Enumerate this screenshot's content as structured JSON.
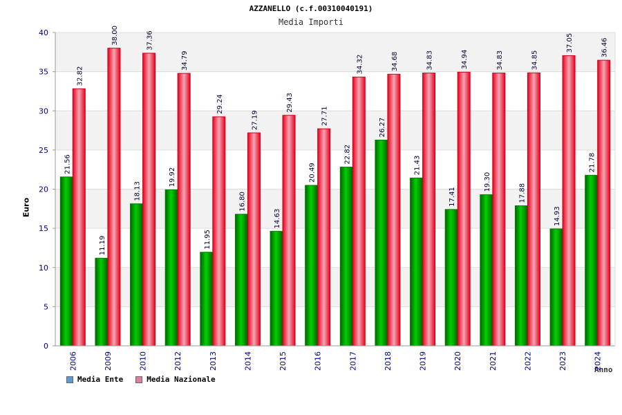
{
  "chart_data": {
    "type": "bar",
    "title": "AZZANELLO (c.f.00310040191)",
    "subtitle": "Media Importi",
    "xlabel": "Anno",
    "ylabel": "Euro",
    "ylim": [
      0,
      40
    ],
    "yticks": [
      "0",
      "5",
      "10",
      "15",
      "20",
      "25",
      "30",
      "35",
      "40"
    ],
    "categories": [
      "2006",
      "2009",
      "2010",
      "2012",
      "2013",
      "2014",
      "2015",
      "2016",
      "2017",
      "2018",
      "2019",
      "2020",
      "2021",
      "2022",
      "2023",
      "2024"
    ],
    "series": [
      {
        "name": "Media Ente",
        "color": "#00a000",
        "legend_color": "#5b9bd5",
        "values": [
          21.56,
          11.19,
          18.13,
          19.92,
          11.95,
          16.8,
          14.63,
          20.49,
          22.82,
          26.27,
          21.43,
          17.41,
          19.3,
          17.88,
          14.93,
          21.78
        ],
        "labels": [
          "21.56",
          "11.19",
          "18.13",
          "19.92",
          "11.95",
          "16.80",
          "14.63",
          "20.49",
          "22.82",
          "26.27",
          "21.43",
          "17.41",
          "19.30",
          "17.88",
          "14.93",
          "21.78"
        ]
      },
      {
        "name": "Media Nazionale",
        "color": "#e8001c",
        "legend_color": "#e07c9c",
        "values": [
          32.82,
          38.0,
          37.36,
          34.79,
          29.24,
          27.19,
          29.43,
          27.71,
          34.32,
          34.68,
          34.83,
          34.94,
          34.83,
          34.85,
          37.05,
          36.46
        ],
        "labels": [
          "32.82",
          "38.00",
          "37.36",
          "34.79",
          "29.24",
          "27.19",
          "29.43",
          "27.71",
          "34.32",
          "34.68",
          "34.83",
          "34.94",
          "34.83",
          "34.85",
          "37.05",
          "36.46"
        ]
      }
    ]
  }
}
